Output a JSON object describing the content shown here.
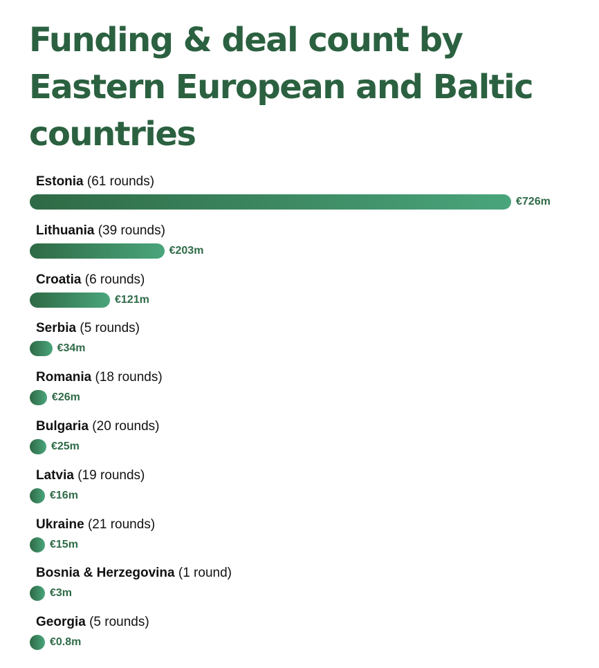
{
  "chart_data": {
    "type": "bar",
    "orientation": "horizontal",
    "title": "Funding & deal count by Eastern European and Baltic countries",
    "categories": [
      "Estonia",
      "Lithuania",
      "Croatia",
      "Serbia",
      "Romania",
      "Bulgaria",
      "Latvia",
      "Ukraine",
      "Bosnia & Herzegovina",
      "Georgia"
    ],
    "round_labels": [
      "(61 rounds)",
      "(39 rounds)",
      "(6 rounds)",
      "(5 rounds)",
      "(18 rounds)",
      "(20 rounds)",
      "(19 rounds)",
      "(21 rounds)",
      "(1 round)",
      "(5 rounds)"
    ],
    "rounds": [
      61,
      39,
      6,
      5,
      18,
      20,
      19,
      21,
      1,
      5
    ],
    "values": [
      726,
      203,
      121,
      34,
      26,
      25,
      16,
      15,
      3,
      0.8
    ],
    "value_labels": [
      "€726m",
      "€203m",
      "€121m",
      "€34m",
      "€26m",
      "€25m",
      "€16m",
      "€15m",
      "€3m",
      "€0.8m"
    ],
    "unit": "€m",
    "colors": {
      "title": "#2b6140",
      "bar_start": "#2e6a45",
      "bar_end": "#4aa57c",
      "value_label": "#2f6b47",
      "category_label": "#111111"
    }
  }
}
